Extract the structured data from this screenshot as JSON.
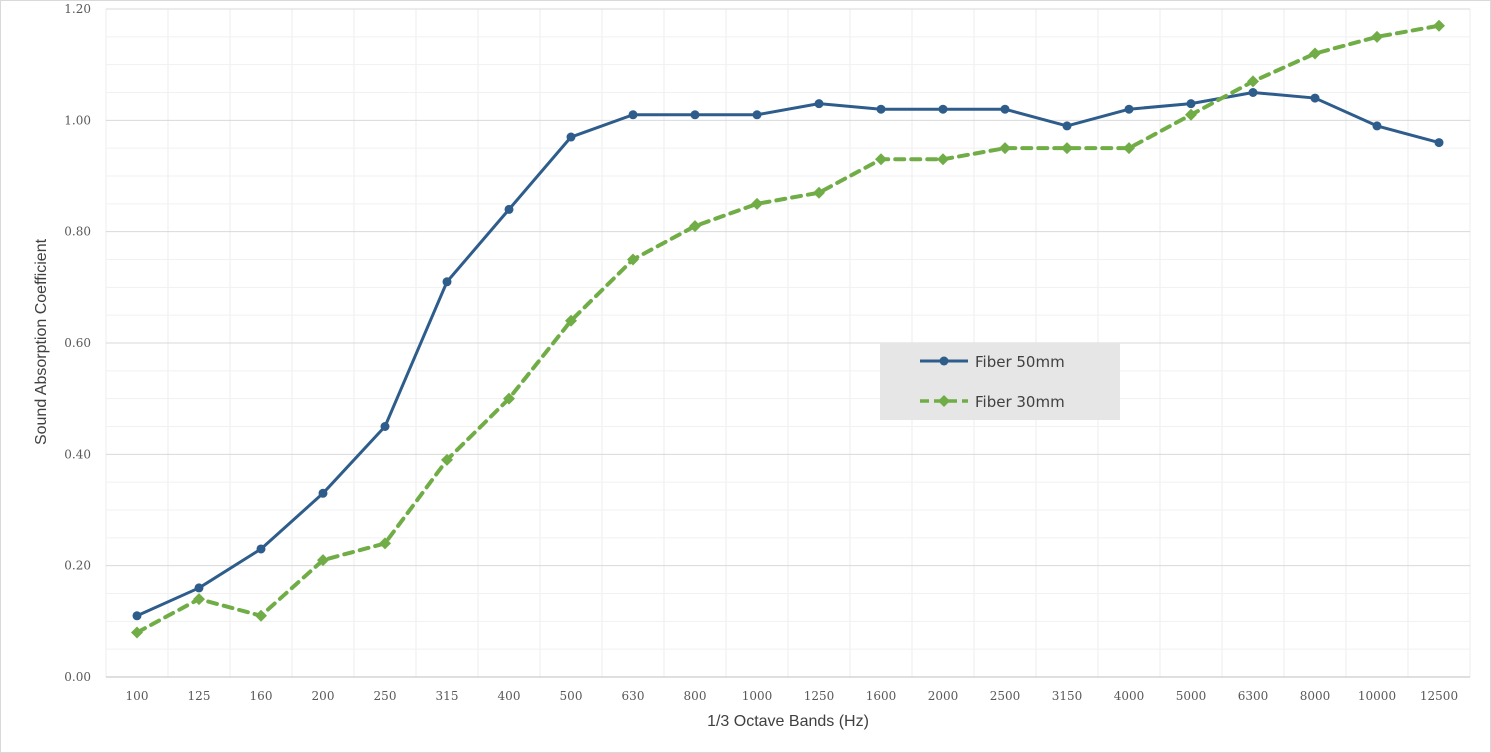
{
  "chart_data": {
    "type": "line",
    "title": "",
    "xlabel": "1/3 Octave Bands (Hz)",
    "ylabel": "Sound Absorption Coefficient",
    "categories": [
      "100",
      "125",
      "160",
      "200",
      "250",
      "315",
      "400",
      "500",
      "630",
      "800",
      "1000",
      "1250",
      "1600",
      "2000",
      "2500",
      "3150",
      "4000",
      "5000",
      "6300",
      "8000",
      "10000",
      "12500"
    ],
    "ylim": [
      0,
      1.2
    ],
    "yticks": [
      "0.00",
      "0.20",
      "0.40",
      "0.60",
      "0.80",
      "1.00",
      "1.20"
    ],
    "grid": true,
    "legend_position": "center-right",
    "series": [
      {
        "name": "Fiber 50mm",
        "color": "#2e5d8c",
        "style": "solid",
        "marker": "circle",
        "values": [
          0.11,
          0.16,
          0.23,
          0.33,
          0.45,
          0.71,
          0.84,
          0.97,
          1.01,
          1.01,
          1.01,
          1.03,
          1.02,
          1.02,
          1.02,
          0.99,
          1.02,
          1.03,
          1.05,
          1.04,
          0.99,
          0.96
        ]
      },
      {
        "name": "Fiber 30mm",
        "color": "#70ad47",
        "style": "dashed",
        "marker": "diamond",
        "values": [
          0.08,
          0.14,
          0.11,
          0.21,
          0.24,
          0.39,
          0.5,
          0.64,
          0.75,
          0.81,
          0.85,
          0.87,
          0.93,
          0.93,
          0.95,
          0.95,
          0.95,
          1.01,
          1.07,
          1.12,
          1.15,
          1.17
        ]
      }
    ]
  }
}
